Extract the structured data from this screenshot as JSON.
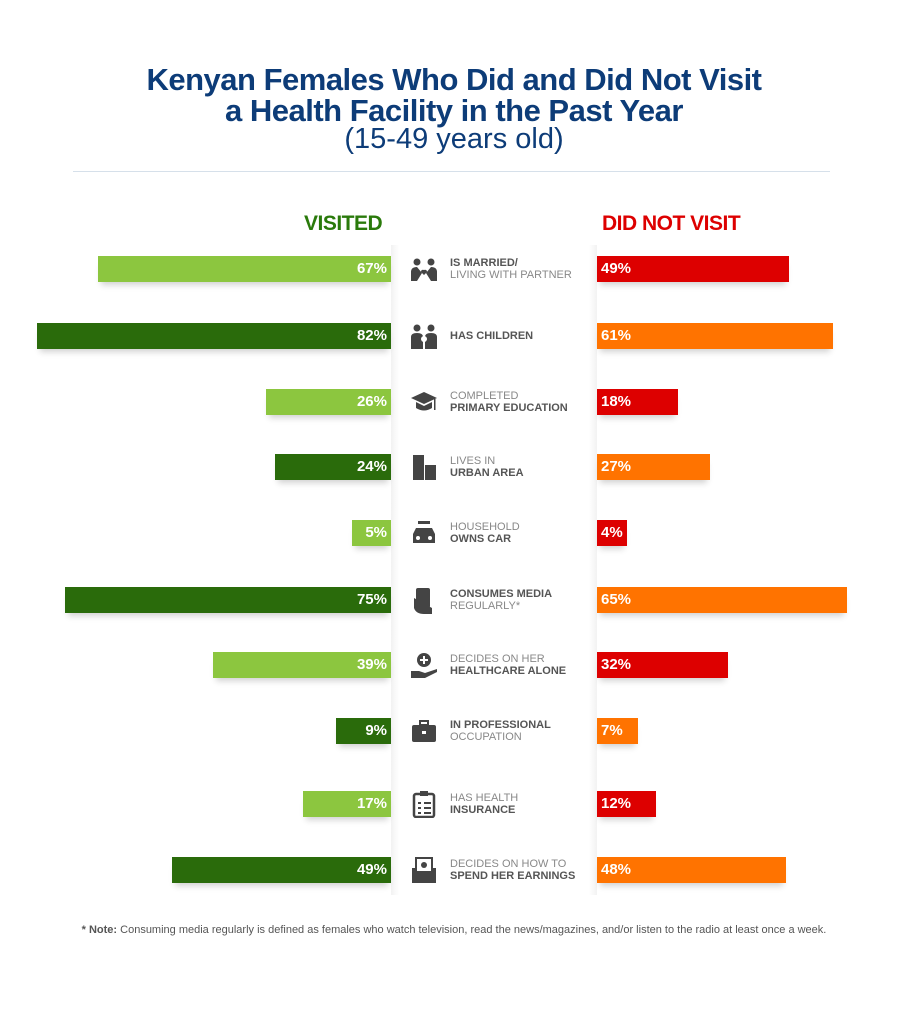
{
  "chart_data": {
    "type": "bar",
    "title": "Kenyan Females Who Did and Did Not Visit a Health Facility in the Past Year",
    "title_lines": [
      "Kenyan Females Who Did and Did Not Visit",
      "a Health Facility in the Past Year"
    ],
    "subtitle": "(15-49 years old)",
    "categories": [
      {
        "light": "",
        "bold": "IS MARRIED/",
        "light2": "LIVING WITH PARTNER",
        "icon": "couple-heart-icon"
      },
      {
        "light": "",
        "bold": "HAS CHILDREN",
        "light2": "",
        "icon": "family-icon"
      },
      {
        "light": "COMPLETED",
        "bold": "PRIMARY EDUCATION",
        "light2": "",
        "icon": "graduation-cap-icon"
      },
      {
        "light": "LIVES IN",
        "bold": "URBAN AREA",
        "light2": "",
        "icon": "buildings-icon"
      },
      {
        "light": "HOUSEHOLD",
        "bold": "OWNS CAR",
        "light2": "",
        "icon": "car-key-icon"
      },
      {
        "light": "",
        "bold": "CONSUMES MEDIA",
        "light2": "REGULARLY*",
        "icon": "phone-hand-icon"
      },
      {
        "light": "DECIDES ON HER",
        "bold": "HEALTHCARE ALONE",
        "light2": "",
        "icon": "hand-plus-icon"
      },
      {
        "light": "",
        "bold": "IN PROFESSIONAL",
        "light2": "OCCUPATION",
        "icon": "briefcase-icon"
      },
      {
        "light": "HAS HEALTH",
        "bold": "INSURANCE",
        "light2": "",
        "icon": "clipboard-checklist-icon"
      },
      {
        "light": "DECIDES ON HOW TO",
        "bold": "SPEND HER EARNINGS",
        "light2": "",
        "icon": "money-envelope-icon"
      }
    ],
    "series": [
      {
        "name": "VISITED",
        "values": [
          67,
          82,
          26,
          24,
          5,
          75,
          39,
          9,
          17,
          49
        ],
        "labels": [
          "67%",
          "82%",
          "26%",
          "24%",
          "5%",
          "75%",
          "39%",
          "9%",
          "17%",
          "49%"
        ],
        "colors": [
          "#8cc63f",
          "#2a6b0b"
        ],
        "header_color": "#2a7a0b"
      },
      {
        "name": "DID NOT VISIT",
        "values": [
          49,
          61,
          18,
          27,
          4,
          65,
          32,
          7,
          12,
          48
        ],
        "labels": [
          "49%",
          "61%",
          "18%",
          "27%",
          "4%",
          "65%",
          "32%",
          "7%",
          "12%",
          "48%"
        ],
        "colors": [
          "#dd0000",
          "#ff7300"
        ],
        "header_color": "#dd0000"
      }
    ],
    "unit": "%",
    "grid": false,
    "legend": "top"
  },
  "note": {
    "bold": "* Note:",
    "text": " Consuming media regularly is defined as females who watch television, read the news/magazines, and/or listen to the radio at least once a week."
  }
}
